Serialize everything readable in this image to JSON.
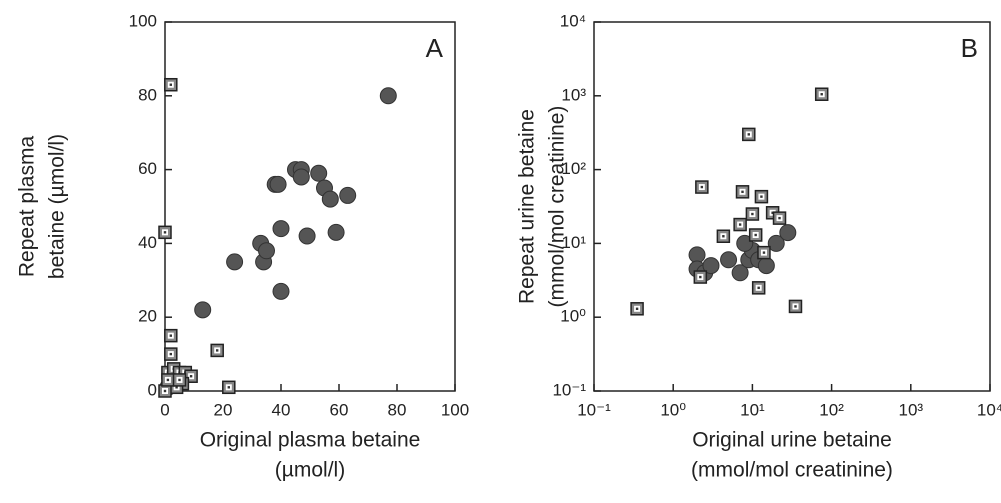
{
  "chart_data": [
    {
      "type": "scatter",
      "annotation": "A",
      "xlabel": [
        "Original plasma betaine",
        "(µmol/l)"
      ],
      "ylabel": [
        "Repeat plasma",
        "betaine (µmol/l)"
      ],
      "xlim": [
        0,
        100
      ],
      "ylim": [
        0,
        100
      ],
      "log": false,
      "xticks": [
        0,
        20,
        40,
        60,
        80,
        100
      ],
      "yticks": [
        0,
        20,
        40,
        60,
        80,
        100
      ],
      "series": [
        {
          "marker": "circle",
          "color": "#555555",
          "x": [
            77,
            13,
            24,
            33,
            34,
            35,
            38,
            39,
            40,
            40,
            45,
            47,
            47,
            49,
            53,
            55,
            57,
            59,
            63,
            1,
            3
          ],
          "values": [
            80,
            22,
            35,
            40,
            35,
            38,
            56,
            56,
            44,
            27,
            60,
            60,
            58,
            42,
            59,
            55,
            52,
            43,
            53,
            1,
            3
          ]
        },
        {
          "marker": "square",
          "color": "#888888",
          "x": [
            2,
            0,
            2,
            2,
            1,
            3,
            5,
            7,
            9,
            6,
            4,
            0,
            1,
            18,
            22,
            5
          ],
          "values": [
            83,
            43,
            15,
            10,
            5,
            6,
            5,
            5,
            4,
            2,
            1,
            0,
            3,
            11,
            1,
            3
          ]
        }
      ]
    },
    {
      "type": "scatter",
      "annotation": "B",
      "xlabel": [
        "Original urine betaine",
        "(mmol/mol creatinine)"
      ],
      "ylabel": [
        "Repeat urine betaine",
        "(mmol/mol creatinine)"
      ],
      "xlim": [
        0.1,
        10000
      ],
      "ylim": [
        0.1,
        10000
      ],
      "log": true,
      "xticks": [
        {
          "value": 0.1,
          "label": "10⁻¹"
        },
        {
          "value": 1,
          "label": "10⁰"
        },
        {
          "value": 10,
          "label": "10¹"
        },
        {
          "value": 100,
          "label": "10²"
        },
        {
          "value": 1000,
          "label": "10³"
        },
        {
          "value": 10000,
          "label": "10⁴"
        }
      ],
      "yticks": [
        {
          "value": 0.1,
          "label": "10⁻¹"
        },
        {
          "value": 1,
          "label": "10⁰"
        },
        {
          "value": 10,
          "label": "10¹"
        },
        {
          "value": 100,
          "label": "10²"
        },
        {
          "value": 1000,
          "label": "10³"
        },
        {
          "value": 10000,
          "label": "10⁴"
        }
      ],
      "series": [
        {
          "marker": "circle",
          "color": "#555555",
          "x": [
            2,
            2,
            2.5,
            3,
            7,
            9,
            10,
            12,
            15,
            20,
            28,
            8,
            5
          ],
          "values": [
            7,
            4.5,
            4,
            5,
            4,
            6,
            8,
            6,
            5,
            10,
            14,
            10,
            6
          ]
        },
        {
          "marker": "square",
          "color": "#888888",
          "x": [
            0.35,
            2.3,
            4.3,
            7.5,
            9,
            75,
            35,
            12,
            10,
            13,
            18,
            22,
            11,
            14,
            7,
            2.2
          ],
          "values": [
            1.3,
            58,
            12.5,
            50,
            300,
            1050,
            1.4,
            2.5,
            25,
            43,
            26,
            22,
            13,
            7.5,
            18,
            3.5
          ]
        }
      ]
    }
  ]
}
